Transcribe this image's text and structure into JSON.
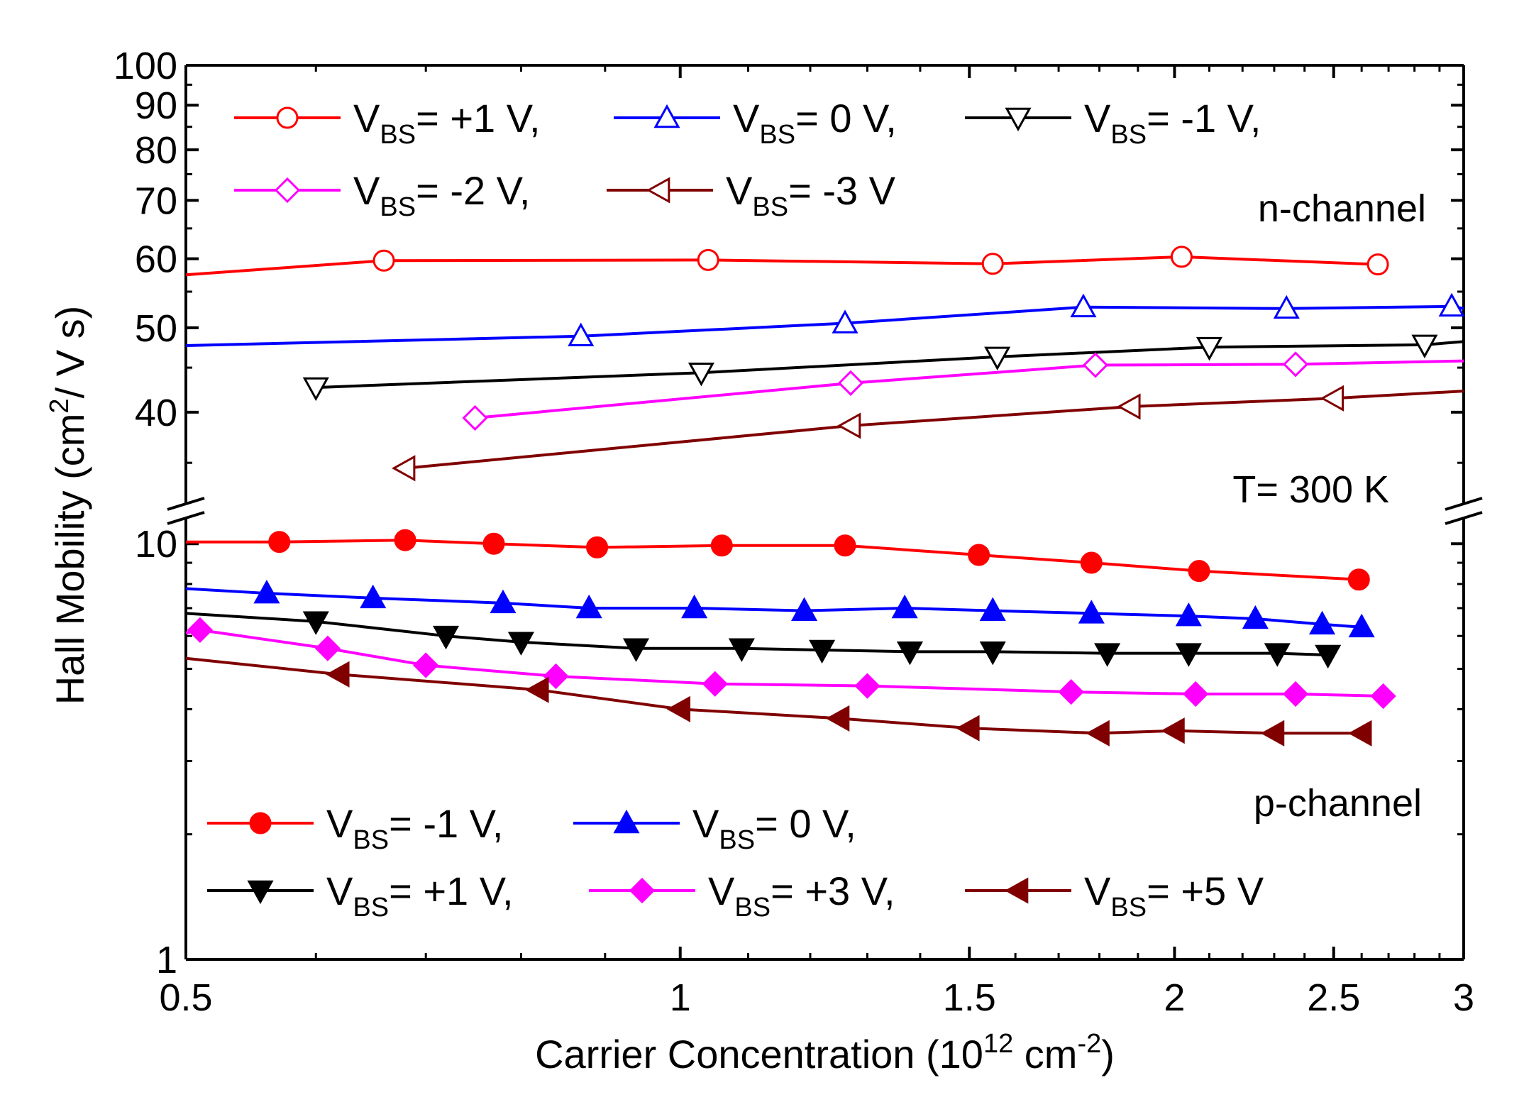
{
  "chart_data": {
    "type": "line",
    "xlabel": {
      "main": "Carrier Concentration (10",
      "sup": "12",
      "mid": " cm",
      "sup2": "-2",
      "end": ")"
    },
    "ylabel": {
      "main": "Hall Mobility (cm",
      "sup": "2",
      "end": "/ V s)"
    },
    "x_scale": "log",
    "xlim": [
      0.5,
      3
    ],
    "x_ticks": [
      {
        "value": 0.5,
        "label": "0.5"
      },
      {
        "value": 1,
        "label": "1"
      },
      {
        "value": 1.5,
        "label": "1.5"
      },
      {
        "value": 2,
        "label": "2"
      },
      {
        "value": 2.5,
        "label": "2.5"
      },
      {
        "value": 3,
        "label": "3"
      }
    ],
    "y_axis_break": true,
    "upper_panel": {
      "y_scale": "log",
      "ylim": [
        32,
        100
      ],
      "y_ticks": [
        {
          "value": 40,
          "label": "40"
        },
        {
          "value": 50,
          "label": "50"
        },
        {
          "value": 60,
          "label": "60"
        },
        {
          "value": 70,
          "label": "70"
        },
        {
          "value": 80,
          "label": "80"
        },
        {
          "value": 90,
          "label": "90"
        },
        {
          "value": 100,
          "label": "100"
        }
      ],
      "annotation_channel": "n-channel",
      "annotation_temp": "T= 300 K",
      "series": [
        {
          "name": "+1 V,",
          "color": "#ff0000",
          "marker": "circle-open",
          "x": [
            0.5,
            0.66,
            1.04,
            1.55,
            2.02,
            2.66
          ],
          "y": [
            57.5,
            59.7,
            59.8,
            59.2,
            60.3,
            59.1
          ]
        },
        {
          "name": "0 V,",
          "color": "#0000ff",
          "marker": "triangle-up-open",
          "x": [
            0.5,
            0.87,
            1.26,
            1.76,
            2.34,
            2.95,
            3.0
          ],
          "y": [
            47.7,
            48.9,
            50.6,
            52.8,
            52.6,
            52.9,
            52.6
          ]
        },
        {
          "name": "-1 V,",
          "color": "#000000",
          "marker": "triangle-down-open",
          "x": [
            0.6,
            1.03,
            1.56,
            2.1,
            2.84,
            3.0
          ],
          "y": [
            42.7,
            44.4,
            46.3,
            47.5,
            47.8,
            48.2
          ]
        },
        {
          "name": "-2 V,",
          "color": "#ff00ff",
          "marker": "diamond-open",
          "x": [
            0.75,
            1.27,
            1.79,
            2.37,
            3.0
          ],
          "y": [
            39.4,
            43.2,
            45.3,
            45.4,
            45.8
          ]
        },
        {
          "name": "-3 V",
          "color": "#800000",
          "marker": "triangle-left-open",
          "x": [
            0.68,
            1.27,
            1.88,
            2.5,
            3.0
          ],
          "y": [
            34.5,
            38.6,
            40.6,
            41.5,
            42.3
          ]
        }
      ]
    },
    "lower_panel": {
      "y_scale": "log",
      "ylim": [
        1,
        11
      ],
      "y_ticks": [
        {
          "value": 1,
          "label": "1"
        },
        {
          "value": 10,
          "label": "10"
        }
      ],
      "annotation_channel": "p-channel",
      "series": [
        {
          "name": "-1 V,",
          "color": "#ff0000",
          "marker": "circle-filled",
          "x": [
            0.5,
            0.57,
            0.68,
            0.77,
            0.89,
            1.06,
            1.26,
            1.52,
            1.78,
            2.07,
            2.59
          ],
          "y": [
            10.1,
            10.1,
            10.2,
            10.0,
            9.8,
            9.9,
            9.9,
            9.4,
            9.0,
            8.6,
            8.2
          ]
        },
        {
          "name": "0 V,",
          "color": "#0000ff",
          "marker": "triangle-up-filled",
          "x": [
            0.5,
            0.56,
            0.65,
            0.78,
            0.88,
            1.02,
            1.19,
            1.37,
            1.55,
            1.78,
            2.04,
            2.24,
            2.46,
            2.6
          ],
          "y": [
            7.8,
            7.6,
            7.4,
            7.2,
            7.0,
            7.0,
            6.9,
            7.0,
            6.9,
            6.8,
            6.7,
            6.6,
            6.4,
            6.3
          ]
        },
        {
          "name": "+1 V,",
          "color": "#000000",
          "marker": "triangle-down-filled",
          "x": [
            0.5,
            0.6,
            0.72,
            0.8,
            0.94,
            1.09,
            1.22,
            1.38,
            1.55,
            1.82,
            2.04,
            2.31,
            2.48
          ],
          "y": [
            6.8,
            6.5,
            6.0,
            5.8,
            5.6,
            5.6,
            5.55,
            5.5,
            5.5,
            5.45,
            5.45,
            5.45,
            5.4
          ]
        },
        {
          "name": "+3 V,",
          "color": "#ff00ff",
          "marker": "diamond-filled",
          "x": [
            0.5,
            0.51,
            0.61,
            0.7,
            0.84,
            1.05,
            1.3,
            1.73,
            2.06,
            2.37,
            2.68
          ],
          "y": [
            6.1,
            6.2,
            5.6,
            5.1,
            4.8,
            4.6,
            4.55,
            4.4,
            4.35,
            4.35,
            4.3
          ]
        },
        {
          "name": "+5 V",
          "color": "#800000",
          "marker": "triangle-left-filled",
          "x": [
            0.5,
            0.62,
            0.82,
            1.0,
            1.25,
            1.5,
            1.8,
            2.0,
            2.3,
            2.6
          ],
          "y": [
            5.3,
            4.85,
            4.45,
            4.0,
            3.8,
            3.6,
            3.5,
            3.55,
            3.5,
            3.5
          ]
        }
      ]
    },
    "legend_prefix": "V",
    "legend_sub": "BS",
    "legend_eq": "= "
  }
}
